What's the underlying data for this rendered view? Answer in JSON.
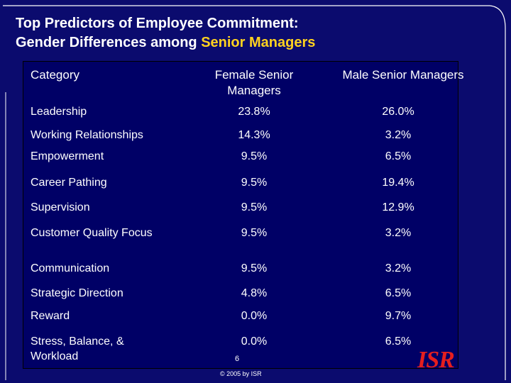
{
  "title": {
    "line1": "Top Predictors of Employee Commitment:",
    "line2_prefix": "Gender Differences among ",
    "line2_accent": "Senior Managers"
  },
  "table": {
    "headers": {
      "category": "Category",
      "female": "Female Senior Managers",
      "male": "Male Senior Managers"
    },
    "rows": [
      {
        "category": "Leadership",
        "female": "23.8%",
        "male": "26.0%"
      },
      {
        "category": "Working Relationships",
        "female": "14.3%",
        "male": "3.2%"
      },
      {
        "category": "Empowerment",
        "female": "9.5%",
        "male": "6.5%"
      },
      {
        "category": "Career Pathing",
        "female": "9.5%",
        "male": "19.4%"
      },
      {
        "category": "Supervision",
        "female": "9.5%",
        "male": "12.9%"
      },
      {
        "category": "Customer Quality Focus",
        "female": "9.5%",
        "male": "3.2%"
      },
      {
        "category": "Communication",
        "female": "9.5%",
        "male": "3.2%"
      },
      {
        "category": "Strategic Direction",
        "female": "4.8%",
        "male": "6.5%"
      },
      {
        "category": "Reward",
        "female": "0.0%",
        "male": "9.7%"
      },
      {
        "category": "Stress, Balance, & Workload",
        "female": "0.0%",
        "male": "6.5%"
      }
    ]
  },
  "footer": {
    "page_number": "6",
    "copyright": "© 2005 by ISR",
    "logo_text": "ISR"
  },
  "colors": {
    "background": "#0b0b6e",
    "accent": "#ffd21f",
    "logo": "#e41f1f"
  }
}
